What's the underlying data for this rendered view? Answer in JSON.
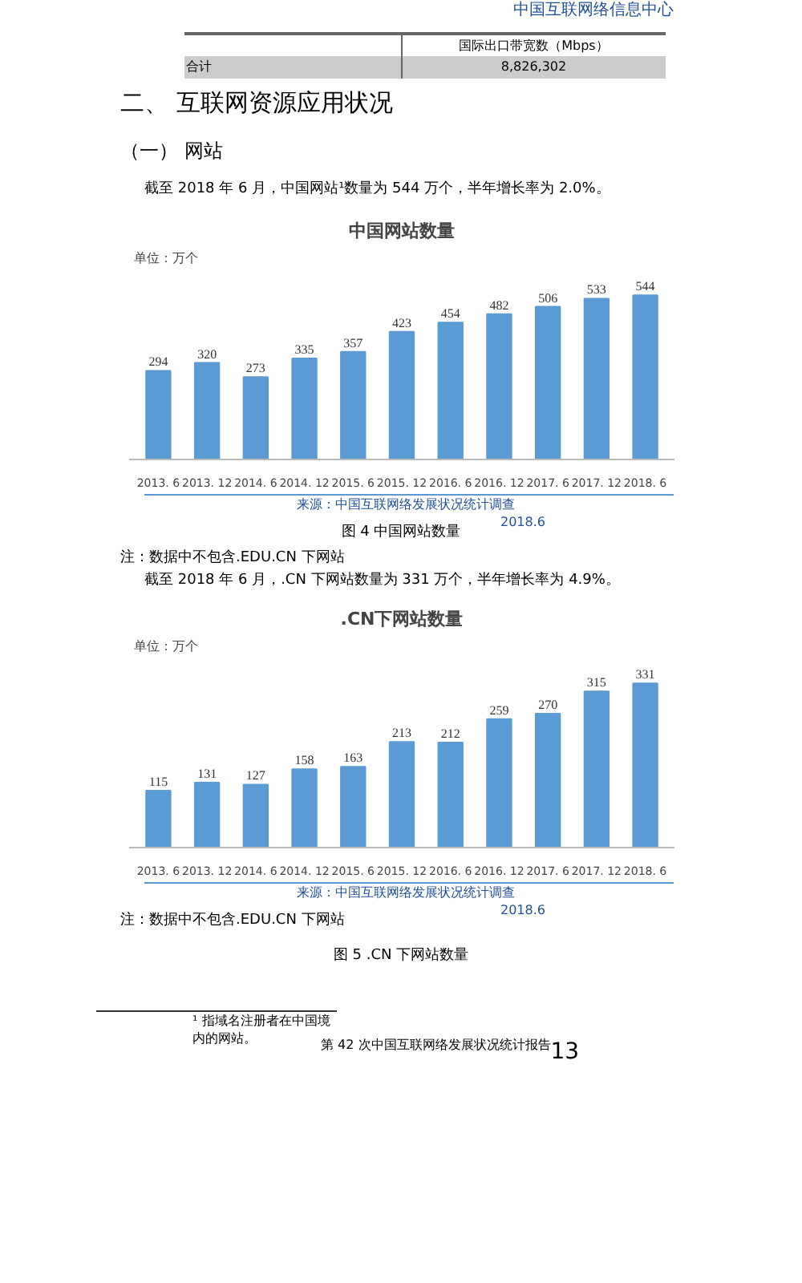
{
  "chart_data": [
    {
      "type": "bar",
      "title": "中国网站数量",
      "ylabel": "单位：万个",
      "categories": [
        "2013. 6",
        "2013. 12",
        "2014. 6",
        "2014. 12",
        "2015. 6",
        "2015. 12",
        "2016. 6",
        "2016. 12",
        "2017. 6",
        "2017. 12",
        "2018. 6"
      ],
      "values": [
        294,
        320,
        273,
        335,
        357,
        423,
        454,
        482,
        506,
        533,
        544
      ],
      "color": "#5b9bd5",
      "data_labels": true,
      "annotations": [
        "中国互联网络信息中心",
        "国际出口带宽数（Mbps）",
        "合计",
        "8,826,302",
        "二、 互联网资源应用状况",
        "（一）  网站",
        "截至 2018 年 6 月，中国网站¹数量为 544 万个，半年增长率为 2.0%。",
        "来源：中国互联网络发展状况统计调查",
        "2018.6",
        "图 4  中国网站数量",
        "注：数据中不包含.EDU.CN 下网站"
      ]
    },
    {
      "type": "bar",
      "title": ".CN下网站数量",
      "ylabel": "单位：万个",
      "categories": [
        "2013. 6",
        "2013. 12",
        "2014. 6",
        "2014. 12",
        "2015. 6",
        "2015. 12",
        "2016. 6",
        "2016. 12",
        "2017. 6",
        "2017. 12",
        "2018. 6"
      ],
      "values": [
        115,
        131,
        127,
        158,
        163,
        213,
        212,
        259,
        270,
        315,
        331
      ],
      "color": "#5b9bd5",
      "data_labels": true,
      "annotations": [
        "截至 2018 年 6 月，.CN 下网站数量为 331 万个，半年增长率为 4.9%。",
        "来源：中国互联网络发展状况统计调查",
        "2018.6",
        "注：数据中不包含.EDU.CN 下网站",
        "图 5  .CN 下网站数量",
        "¹ 指域名注册者在中国境内的网站。",
        "第 42 次中国互联网络发展状况统计报告",
        "13"
      ]
    }
  ]
}
